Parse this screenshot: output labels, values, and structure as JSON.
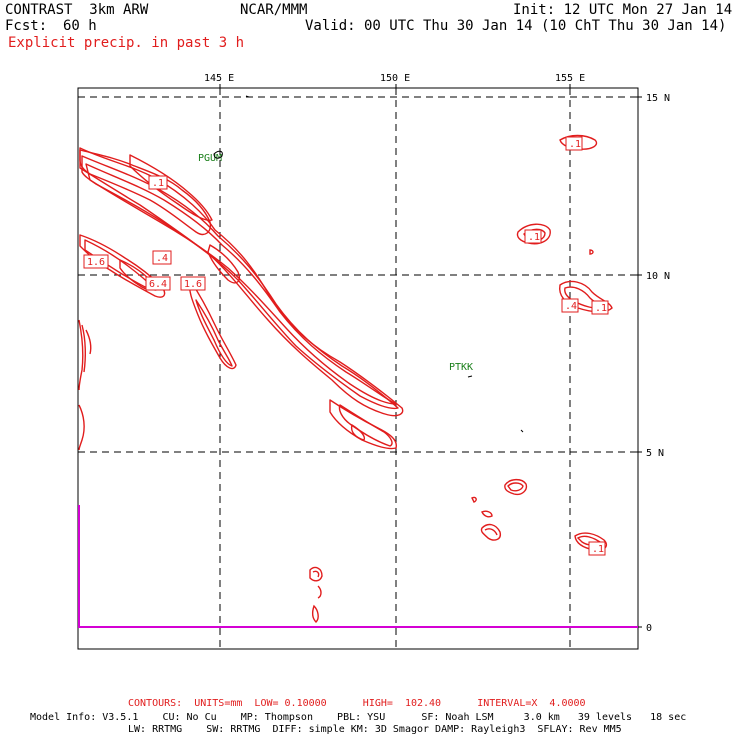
{
  "header": {
    "model": "CONTRAST  3km ARW",
    "center": "NCAR/MMM",
    "init": "Init: 12 UTC Mon 27 Jan 14",
    "fcst_label": "Fcst:",
    "fcst_value": "60 h",
    "valid": "Valid: 00 UTC Thu 30 Jan 14 (10 ChT Thu 30 Jan 14)",
    "field": "Explicit precip. in past 3 h"
  },
  "axes": {
    "lon_labels": [
      "145 E",
      "150 E",
      "155 E"
    ],
    "lat_labels": [
      "15 N",
      "10 N",
      "5 N",
      "0"
    ]
  },
  "stations": [
    {
      "id": "PGUM"
    },
    {
      "id": "PTKK"
    }
  ],
  "contour_labels": [
    ".1",
    "1.6",
    ".4",
    "6.4",
    "1.6",
    ".1",
    ".1",
    ".4",
    ".1",
    ".1"
  ],
  "footer": {
    "contours": "CONTOURS:  UNITS=mm  LOW= 0.10000      HIGH=  102.40      INTERVAL=X  4.0000",
    "model_info_1": "Model Info: V3.5.1    CU: No Cu    MP: Thompson    PBL: YSU      SF: Noah LSM     3.0 km   39 levels   18 sec",
    "model_info_2": "LW: RRTMG    SW: RRTMG  DIFF: simple KM: 3D Smagor DAMP: Rayleigh3  SFLAY: Rev MM5"
  },
  "colors": {
    "contour": "#e11d1d",
    "station": "#1a7f1a",
    "boundary": "#d400d4",
    "grid": "#000000"
  }
}
